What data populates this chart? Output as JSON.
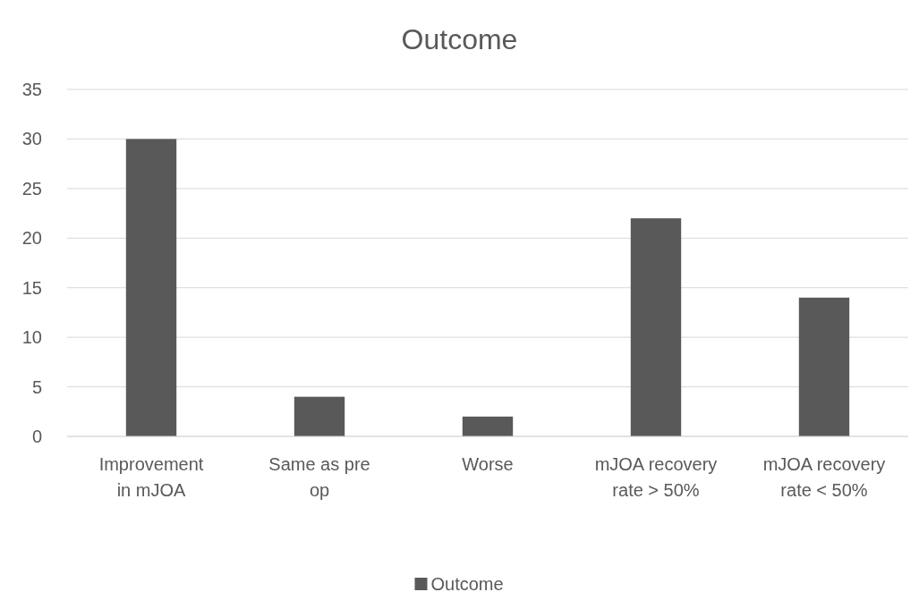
{
  "chart_data": {
    "type": "bar",
    "title": "Outcome",
    "categories": [
      "Improvement in mJOA",
      "Same as pre op",
      "Worse",
      "mJOA recovery rate > 50%",
      "mJOA recovery rate < 50%"
    ],
    "series": [
      {
        "name": "Outcome",
        "color": "#595959",
        "values": [
          30,
          4,
          2,
          22,
          14
        ]
      }
    ],
    "ylim": [
      0,
      35
    ],
    "yticks": [
      0,
      5,
      10,
      15,
      20,
      25,
      30,
      35
    ],
    "grid": "y",
    "legend": "bottom"
  }
}
